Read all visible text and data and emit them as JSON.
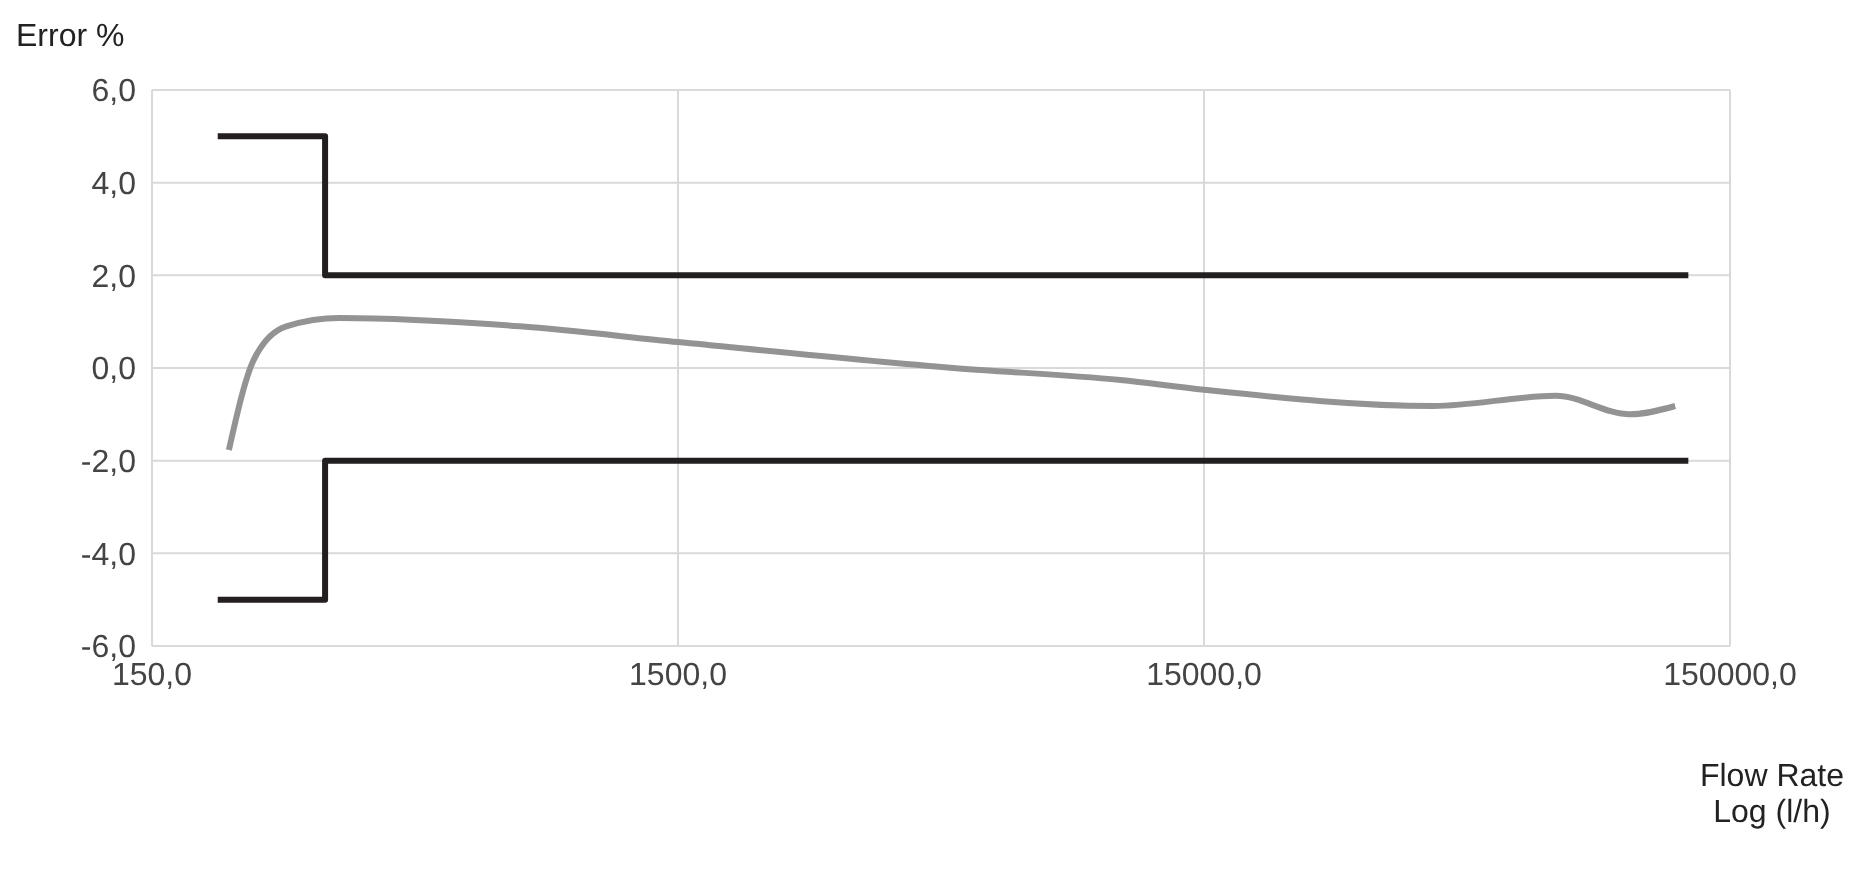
{
  "chart_data": {
    "type": "line",
    "ylabel": "Error %",
    "xlabel": "Flow Rate\nLog (l/h)",
    "log": "x",
    "grid": true,
    "marker": "none",
    "line_style": "solid",
    "xlim": [
      150,
      150000
    ],
    "xticks": [
      {
        "value": 150,
        "label": "150,0"
      },
      {
        "value": 1500,
        "label": "1500,0"
      },
      {
        "value": 15000,
        "label": "15000,0"
      },
      {
        "value": 150000,
        "label": "150000,0"
      }
    ],
    "ylim": [
      -6,
      6
    ],
    "yticks": [
      {
        "value": -6,
        "label": "-6,0"
      },
      {
        "value": -4,
        "label": "-4,0"
      },
      {
        "value": -2,
        "label": "-2,0"
      },
      {
        "value": 0,
        "label": "0,0"
      },
      {
        "value": 2,
        "label": "2,0"
      },
      {
        "value": 4,
        "label": "4,0"
      },
      {
        "value": 6,
        "label": "6,0"
      }
    ],
    "series": [
      {
        "type": "step",
        "color": "#231f20",
        "x": [
          200,
          320,
          125000
        ],
        "values": [
          5,
          2,
          2
        ]
      },
      {
        "type": "step",
        "color": "#231f20",
        "x": [
          200,
          320,
          125000
        ],
        "values": [
          -5,
          -2,
          -2
        ]
      },
      {
        "color": "#939393",
        "x": [
          210,
          234,
          270,
          341,
          750,
          1500,
          5000,
          10400,
          15000,
          41000,
          70000,
          96800,
          118000
        ],
        "values": [
          -1.77,
          0.17,
          0.9,
          1.08,
          0.9,
          0.56,
          0.0,
          -0.26,
          -0.47,
          -0.82,
          -0.6,
          -1.0,
          -0.82
        ]
      }
    ]
  }
}
